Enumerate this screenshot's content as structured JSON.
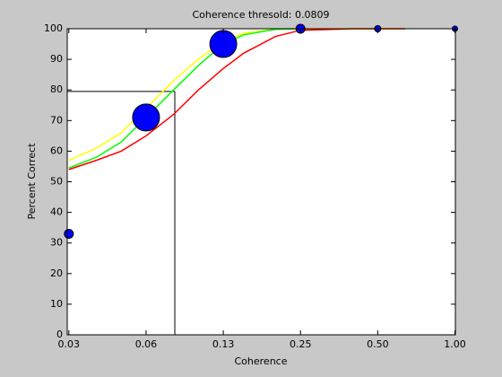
{
  "chart_data": {
    "type": "line",
    "title": "Coherence thresold: 0.0809",
    "x_label": "Coherence",
    "y_label": "Percent Correct",
    "log_x": true,
    "xlim": [
      0.0308,
      1.004
    ],
    "ylim": [
      0,
      100
    ],
    "xticks": [
      {
        "value": 0.03125,
        "label": "0.03"
      },
      {
        "value": 0.0625,
        "label": "0.06"
      },
      {
        "value": 0.125,
        "label": "0.13"
      },
      {
        "value": 0.25,
        "label": "0.25"
      },
      {
        "value": 0.5,
        "label": "0.50"
      },
      {
        "value": 1,
        "label": "1.00"
      }
    ],
    "yticks": [
      0,
      10,
      20,
      30,
      40,
      50,
      60,
      70,
      80,
      90,
      100
    ],
    "x": [
      0.03125,
      0.04,
      0.05,
      0.0625,
      0.08,
      0.1,
      0.125,
      0.15,
      0.2,
      0.25,
      0.4,
      0.64
    ],
    "series": [
      {
        "color": "#ffff00",
        "values": [
          57,
          61,
          66,
          74,
          83,
          90,
          96,
          98.5,
          99.8,
          100,
          100,
          100
        ]
      },
      {
        "color": "#00ff00",
        "values": [
          54.5,
          58,
          63,
          71,
          80,
          88,
          95,
          98,
          99.8,
          100,
          null,
          null
        ]
      },
      {
        "color": "#ff0000",
        "values": [
          54,
          57,
          60,
          65,
          72,
          80,
          87,
          92,
          97.5,
          99.5,
          100,
          100
        ]
      }
    ],
    "points": {
      "color": "#0000ff",
      "x": [
        0.03125,
        0.0625,
        0.125,
        0.25,
        0.5,
        1
      ],
      "values": [
        33,
        71,
        95,
        100,
        100,
        100
      ],
      "sizes": [
        5,
        15,
        15,
        5,
        3.5,
        3
      ]
    },
    "threshold": {
      "x": 0.0809,
      "y": 79.5,
      "color": "#000000"
    }
  }
}
